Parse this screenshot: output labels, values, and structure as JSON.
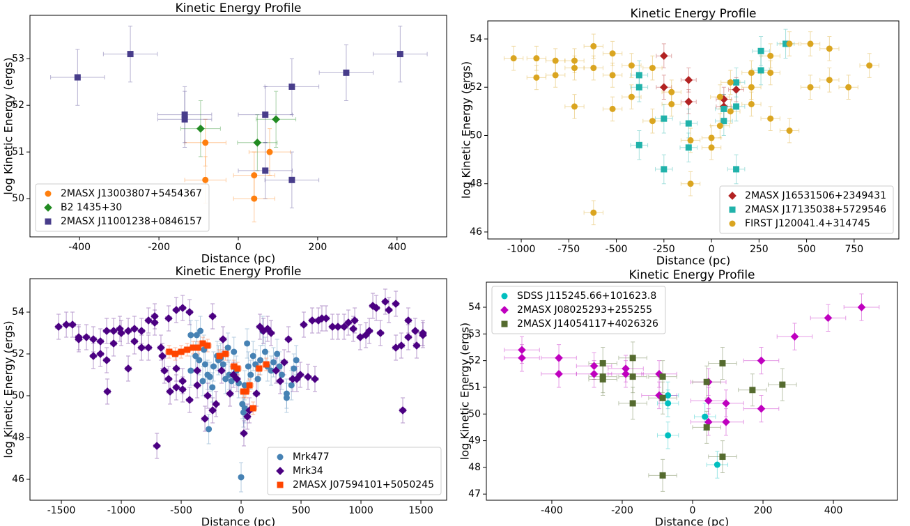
{
  "chart_data": [
    {
      "type": "scatter",
      "title": "Kinetic Energy Profile",
      "xlabel": "Distance (pc)",
      "ylabel": "log Kinetic Energy (ergs)",
      "xlim": [
        -525,
        525
      ],
      "ylim": [
        49.18,
        53.93
      ],
      "xticks": [
        -400,
        -200,
        0,
        200,
        400
      ],
      "yticks": [
        50,
        51,
        52,
        53
      ],
      "legend": "lower left",
      "series": [
        {
          "name": "2MASX J13003807+5454367",
          "color": "#ff7f0e",
          "marker": "circle",
          "xerr": 52,
          "yerr": 0.5,
          "x": [
            -83,
            -83,
            40,
            40,
            79
          ],
          "y": [
            51.2,
            50.4,
            50.5,
            50.0,
            51.0
          ]
        },
        {
          "name": "B2 1435+30",
          "color": "#228b22",
          "marker": "diamond",
          "xerr": 50,
          "yerr": 0.6,
          "x": [
            -95,
            48,
            95
          ],
          "y": [
            51.5,
            51.2,
            51.7
          ]
        },
        {
          "name": "2MASX J11001238+0846157",
          "color": "#483d8b",
          "marker": "square",
          "xerr": 68,
          "yerr": 0.6,
          "x": [
            -405,
            -272,
            -135,
            -135,
            68,
            68,
            135,
            135,
            272,
            408
          ],
          "y": [
            52.6,
            53.1,
            51.8,
            51.7,
            51.8,
            50.6,
            52.4,
            50.4,
            52.7,
            53.1
          ]
        }
      ]
    },
    {
      "type": "scatter",
      "title": "Kinetic Energy Profile",
      "xlabel": "Distance (pc)",
      "ylabel": "log Kinetic Energy (ergs)",
      "xlim": [
        -1176,
        985
      ],
      "ylim": [
        45.71,
        54.75
      ],
      "xticks": [
        -1000,
        -750,
        -500,
        -250,
        0,
        250,
        500,
        750
      ],
      "yticks": [
        46,
        48,
        50,
        52,
        54
      ],
      "legend": "lower right",
      "series": [
        {
          "name": "2MASX J16531506+2349431",
          "color": "#b22222",
          "marker": "diamond",
          "xerr": 40,
          "yerr": 0.5,
          "x": [
            -250,
            -250,
            -120,
            -120,
            65,
            65,
            130
          ],
          "y": [
            53.3,
            52.0,
            52.3,
            51.4,
            51.5,
            51.2,
            51.9
          ]
        },
        {
          "name": "2MASX J17135038+5729546",
          "color": "#20b2aa",
          "marker": "square",
          "xerr": 45,
          "yerr": 0.6,
          "x": [
            -380,
            -380,
            -380,
            -250,
            -250,
            -120,
            -120,
            130,
            130,
            130,
            65,
            65,
            260,
            260,
            390
          ],
          "y": [
            52.5,
            52.0,
            49.6,
            50.7,
            48.6,
            50.5,
            49.5,
            52.2,
            51.2,
            48.6,
            51.1,
            50.6,
            53.5,
            52.7,
            53.8
          ]
        },
        {
          "name": "FIRST J120041.4+314745",
          "color": "#daa520",
          "marker": "circle",
          "xerr": 50,
          "yerr": 0.5,
          "x": [
            -1040,
            -920,
            -920,
            -820,
            -820,
            -720,
            -720,
            -720,
            -620,
            -620,
            -620,
            -520,
            -520,
            -520,
            -420,
            -420,
            -310,
            -310,
            -210,
            -210,
            -110,
            -110,
            0,
            0,
            45,
            45,
            100,
            100,
            210,
            210,
            210,
            310,
            310,
            310,
            410,
            410,
            520,
            520,
            620,
            620,
            720,
            830
          ],
          "y": [
            53.2,
            53.2,
            52.4,
            53.1,
            52.5,
            53.1,
            52.8,
            51.2,
            53.7,
            52.8,
            46.8,
            53.4,
            52.5,
            51.1,
            52.9,
            51.6,
            52.8,
            50.6,
            51.8,
            51.3,
            49.8,
            48.0,
            49.9,
            49.5,
            50.4,
            51.6,
            51.0,
            52.2,
            52.6,
            52.0,
            51.3,
            53.3,
            52.6,
            50.7,
            50.2,
            53.8,
            53.8,
            52.0,
            53.6,
            52.3,
            52.0,
            52.9
          ]
        }
      ]
    },
    {
      "type": "scatter",
      "title": "Kinetic Energy Profile",
      "xlabel": "Distance (pc)",
      "ylabel": "log Kinetic Energy (ergs)",
      "xlim": [
        -1762,
        1715
      ],
      "ylim": [
        45.0,
        55.6
      ],
      "xticks": [
        -1500,
        -1000,
        -500,
        0,
        500,
        1000,
        1500
      ],
      "yticks": [
        46,
        48,
        50,
        52,
        54
      ],
      "legend": "lower right",
      "series": [
        {
          "name": "Mrk477",
          "color": "#4682b4",
          "marker": "circle",
          "xerr": 20,
          "yerr": 0.7,
          "x": [
            -420,
            -370,
            -340,
            -310,
            -300,
            -280,
            -270,
            -260,
            -240,
            -230,
            -200,
            -190,
            -170,
            -150,
            -130,
            -110,
            -100,
            -80,
            -60,
            -40,
            -20,
            0,
            10,
            20,
            30,
            50,
            60,
            80,
            100,
            120,
            140,
            160,
            180,
            200,
            220,
            250,
            270,
            300,
            320,
            340,
            380,
            380,
            420,
            440,
            460,
            -420,
            -380,
            -350,
            -320,
            30
          ],
          "y": [
            52.9,
            52.9,
            53.1,
            52.2,
            51.5,
            51.0,
            48.4,
            50.9,
            50.4,
            51.4,
            51.9,
            51.7,
            51.8,
            51.5,
            50.8,
            52.3,
            51.0,
            50.7,
            52.1,
            51.2,
            50.6,
            46.1,
            49.6,
            49.2,
            50.5,
            52.5,
            51.4,
            51.0,
            51.9,
            51.5,
            50.8,
            51.7,
            53.1,
            52.1,
            51.4,
            51.2,
            51.6,
            52.0,
            51.4,
            51.0,
            50.1,
            49.9,
            50.5,
            51.3,
            51.7,
            51.2,
            51.9,
            51.7,
            50.7,
            49.4
          ]
        },
        {
          "name": "Mrk34",
          "color": "#4b0082",
          "marker": "diamond",
          "xerr": 25,
          "yerr": 0.6,
          "x": [
            -1523,
            -1459,
            -1407,
            -1355,
            -1355,
            -1291,
            -1233,
            -1233,
            -1174,
            -1174,
            -1122,
            -1122,
            -1116,
            -1064,
            -1064,
            -1012,
            -1000,
            -942,
            -942,
            -890,
            -890,
            -831,
            -831,
            -773,
            -773,
            -721,
            -721,
            -703,
            -669,
            -657,
            -605,
            -605,
            -593,
            -640,
            -541,
            -541,
            -541,
            -488,
            -488,
            -488,
            -430,
            -430,
            -366,
            -366,
            -302,
            -279,
            -238,
            -238,
            -209,
            -163,
            -151,
            -93,
            -64,
            -35,
            23,
            52,
            70,
            128,
            157,
            186,
            221,
            250,
            291,
            326,
            360,
            395,
            430,
            465,
            494,
            523,
            558,
            593,
            616,
            645,
            674,
            709,
            762,
            808,
            860,
            895,
            936,
            948,
            994,
            1041,
            1070,
            1099,
            1128,
            1163,
            1203,
            1233,
            1291,
            1291,
            1337,
            1349,
            1395,
            1395,
            1453,
            1465,
            1517,
            1517
          ],
          "y": [
            53.3,
            53.4,
            53.4,
            52.7,
            52.8,
            52.8,
            51.9,
            52.7,
            52.0,
            52.6,
            53.1,
            51.7,
            50.2,
            53.1,
            52.5,
            53.2,
            53.0,
            51.3,
            53.1,
            53.2,
            52.6,
            53.1,
            52.3,
            53.6,
            52.3,
            53.8,
            53.5,
            47.6,
            52.3,
            51.9,
            53.7,
            50.8,
            50.2,
            51.2,
            54.1,
            51.3,
            50.4,
            54.2,
            50.7,
            50.3,
            54.0,
            49.8,
            51.2,
            50.5,
            48.9,
            50.0,
            53.8,
            49.3,
            49.6,
            51.2,
            52.7,
            50.1,
            51.0,
            50.8,
            48.2,
            49.0,
            49.3,
            50.1,
            53.3,
            53.1,
            53.2,
            53.0,
            51.2,
            50.7,
            51.6,
            52.7,
            50.8,
            50.8,
            51.0,
            53.4,
            50.9,
            53.6,
            50.8,
            53.6,
            53.7,
            53.7,
            53.3,
            53.3,
            53.3,
            53.5,
            53.2,
            53.6,
            52.8,
            52.9,
            53.1,
            54.3,
            54.2,
            53.0,
            54.5,
            54.1,
            54.4,
            52.3,
            52.4,
            49.3,
            52.8,
            53.6,
            53.1,
            52.4,
            52.9,
            53.0
          ]
        },
        {
          "name": "2MASX J07594101+5050245",
          "color": "#ff4500",
          "marker": "square",
          "xerr": 30,
          "yerr": 0.3,
          "x": [
            -600,
            -550,
            -500,
            -450,
            -400,
            -360,
            -320,
            -280,
            -180,
            -130,
            -60,
            -30,
            20,
            40,
            70,
            100,
            150,
            210
          ],
          "y": [
            52.1,
            52.0,
            52.1,
            52.2,
            52.3,
            52.3,
            52.5,
            52.4,
            51.9,
            52.0,
            51.4,
            51.3,
            50.2,
            50.2,
            50.5,
            49.4,
            51.3,
            51.5
          ]
        }
      ]
    },
    {
      "type": "scatter",
      "title": "Kinetic Energy Profile",
      "xlabel": "Distance (pc)",
      "ylabel": "log Kinetic Energy (ergs)",
      "xlim": [
        -586,
        582
      ],
      "ylim": [
        46.77,
        54.94
      ],
      "xticks": [
        -400,
        -200,
        0,
        200,
        400
      ],
      "yticks": [
        47,
        48,
        49,
        50,
        51,
        52,
        53,
        54
      ],
      "legend": "upper left",
      "series": [
        {
          "name": "SDSS J115245.66+101623.8",
          "color": "#00bfbf",
          "marker": "circle",
          "xerr": 30,
          "yerr": 0.5,
          "x": [
            -70,
            -70,
            -70,
            35,
            70
          ],
          "y": [
            50.7,
            50.4,
            49.2,
            49.9,
            48.1
          ]
        },
        {
          "name": "2MASX J08025293+255255",
          "color": "#bf00bf",
          "marker": "diamond",
          "xerr": 50,
          "yerr": 0.5,
          "x": [
            -485,
            -485,
            -380,
            -380,
            -280,
            -280,
            -190,
            -190,
            -95,
            -95,
            45,
            45,
            45,
            95,
            95,
            195,
            195,
            290,
            385,
            480
          ],
          "y": [
            52.4,
            52.1,
            52.1,
            51.5,
            51.8,
            51.5,
            51.7,
            51.5,
            51.5,
            50.7,
            51.2,
            50.5,
            49.7,
            50.4,
            49.7,
            52.0,
            50.2,
            52.9,
            53.6,
            54.0
          ]
        },
        {
          "name": "2MASX J14054117+4026326",
          "color": "#556b2f",
          "marker": "square",
          "xerr": 40,
          "yerr": 0.6,
          "x": [
            -255,
            -255,
            -255,
            -170,
            -170,
            -170,
            -85,
            -85,
            -85,
            40,
            40,
            85,
            85,
            170,
            255
          ],
          "y": [
            51.9,
            51.4,
            51.3,
            52.1,
            51.4,
            50.4,
            51.4,
            50.6,
            47.7,
            51.2,
            49.5,
            51.9,
            48.4,
            50.9,
            51.1
          ]
        }
      ]
    }
  ]
}
